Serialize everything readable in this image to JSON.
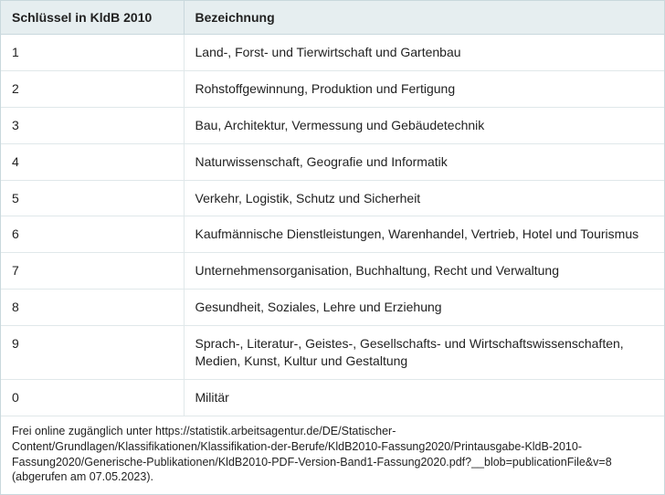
{
  "table": {
    "columns": [
      "Schlüssel in KldB 2010",
      "Bezeichnung"
    ],
    "rows": [
      [
        "1",
        "Land-, Forst- und Tierwirtschaft und Gartenbau"
      ],
      [
        "2",
        "Rohstoffgewinnung, Produktion und Fertigung"
      ],
      [
        "3",
        "Bau, Architektur, Vermessung und Gebäudetechnik"
      ],
      [
        "4",
        "Naturwissenschaft, Geografie und Informatik"
      ],
      [
        "5",
        "Verkehr, Logistik, Schutz und Sicherheit"
      ],
      [
        "6",
        "Kaufmännische Dienstleistungen, Warenhandel, Vertrieb, Hotel und Tourismus"
      ],
      [
        "7",
        "Unternehmensorganisation, Buchhaltung, Recht und Verwaltung"
      ],
      [
        "8",
        "Gesundheit, Soziales, Lehre und Erziehung"
      ],
      [
        "9",
        "Sprach-, Literatur-, Geistes-, Gesellschafts- und Wirtschaftswissenschaften, Medien, Kunst, Kultur und Gestaltung"
      ],
      [
        "0",
        "Militär"
      ]
    ],
    "header_bg": "#e6eef0",
    "border_color": "#c9d8dd",
    "row_border_color": "#e0e8ea",
    "font_size_header": 14,
    "font_size_body": 14,
    "col0_width": 200
  },
  "footnote": "Frei online zugänglich unter https://statistik.arbeitsagentur.de/DE/Statischer-Content/Grundlagen/Klassifikationen/Klassifikation-der-Berufe/KldB2010-Fassung2020/Printausgabe-KldB-2010-Fassung2020/Generische-Publikationen/KldB2010-PDF-Version-Band1-Fassung2020.pdf?__blob=publicationFile&v=8 (abgerufen am 07.05.2023)."
}
